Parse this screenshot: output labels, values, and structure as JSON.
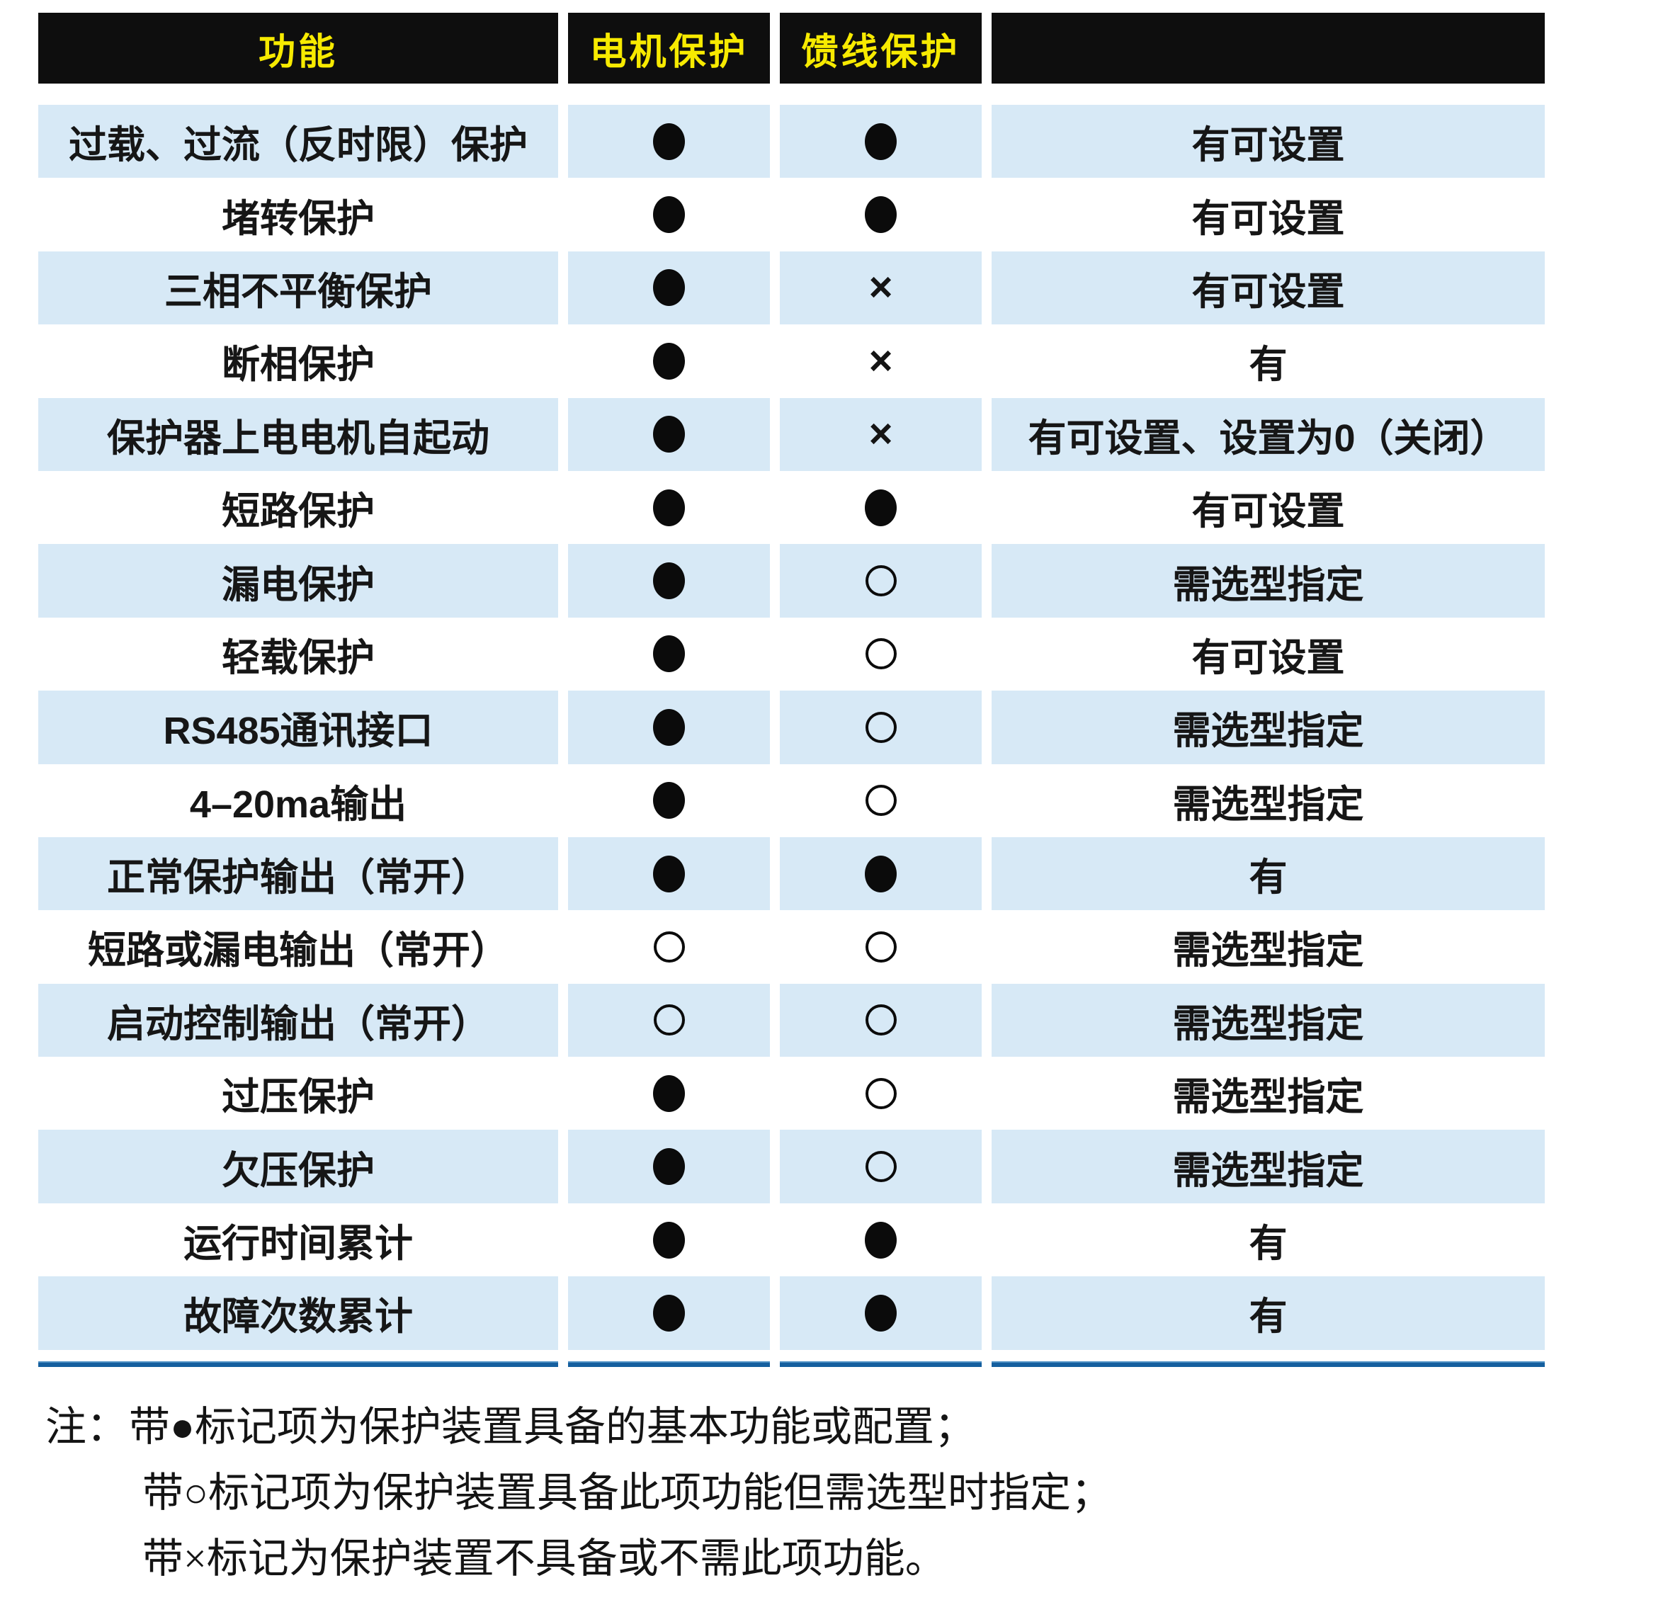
{
  "table": {
    "header": {
      "col_function": "功能",
      "col_motor": "电机保护",
      "col_feeder": "馈线保护",
      "col_remark": ""
    },
    "symbol_legend": {
      "filled": "black-filled-circle",
      "open": "open-circle",
      "cross": "x-mark"
    },
    "rows": [
      {
        "function": "过载、过流（反时限）保护",
        "motor": "filled",
        "feeder": "filled",
        "remark": "有可设置"
      },
      {
        "function": "堵转保护",
        "motor": "filled",
        "feeder": "filled",
        "remark": "有可设置"
      },
      {
        "function": "三相不平衡保护",
        "motor": "filled",
        "feeder": "cross",
        "remark": "有可设置"
      },
      {
        "function": "断相保护",
        "motor": "filled",
        "feeder": "cross",
        "remark": "有"
      },
      {
        "function": "保护器上电电机自起动",
        "motor": "filled",
        "feeder": "cross",
        "remark": "有可设置、设置为0（关闭）"
      },
      {
        "function": "短路保护",
        "motor": "filled",
        "feeder": "filled",
        "remark": "有可设置"
      },
      {
        "function": "漏电保护",
        "motor": "filled",
        "feeder": "open",
        "remark": "需选型指定"
      },
      {
        "function": "轻载保护",
        "motor": "filled",
        "feeder": "open",
        "remark": "有可设置"
      },
      {
        "function": "RS485通讯接口",
        "motor": "filled",
        "feeder": "open",
        "remark": "需选型指定"
      },
      {
        "function": "4–20ma输出",
        "motor": "filled",
        "feeder": "open",
        "remark": "需选型指定"
      },
      {
        "function": "正常保护输出（常开）",
        "motor": "filled",
        "feeder": "filled",
        "remark": "有"
      },
      {
        "function": "短路或漏电输出（常开）",
        "motor": "open",
        "feeder": "open",
        "remark": "需选型指定"
      },
      {
        "function": "启动控制输出（常开）",
        "motor": "open",
        "feeder": "open",
        "remark": "需选型指定"
      },
      {
        "function": "过压保护",
        "motor": "filled",
        "feeder": "open",
        "remark": "需选型指定"
      },
      {
        "function": "欠压保护",
        "motor": "filled",
        "feeder": "open",
        "remark": "需选型指定"
      },
      {
        "function": "运行时间累计",
        "motor": "filled",
        "feeder": "filled",
        "remark": "有"
      },
      {
        "function": "故障次数累计",
        "motor": "filled",
        "feeder": "filled",
        "remark": "有"
      }
    ]
  },
  "notes": {
    "prefix": "注：",
    "items": [
      "带●标记项为保护装置具备的基本功能或配置；",
      "带○标记项为保护装置具备此项功能但需选型时指定；",
      "带×标记为保护装置不具备或不需此项功能。"
    ]
  },
  "colors": {
    "header_bg": "#0e0e0e",
    "header_text": "#F7EA00",
    "row_alt_bg": "#D7E9F6",
    "rule_color": "#155F9F",
    "text_color": "#161616"
  }
}
